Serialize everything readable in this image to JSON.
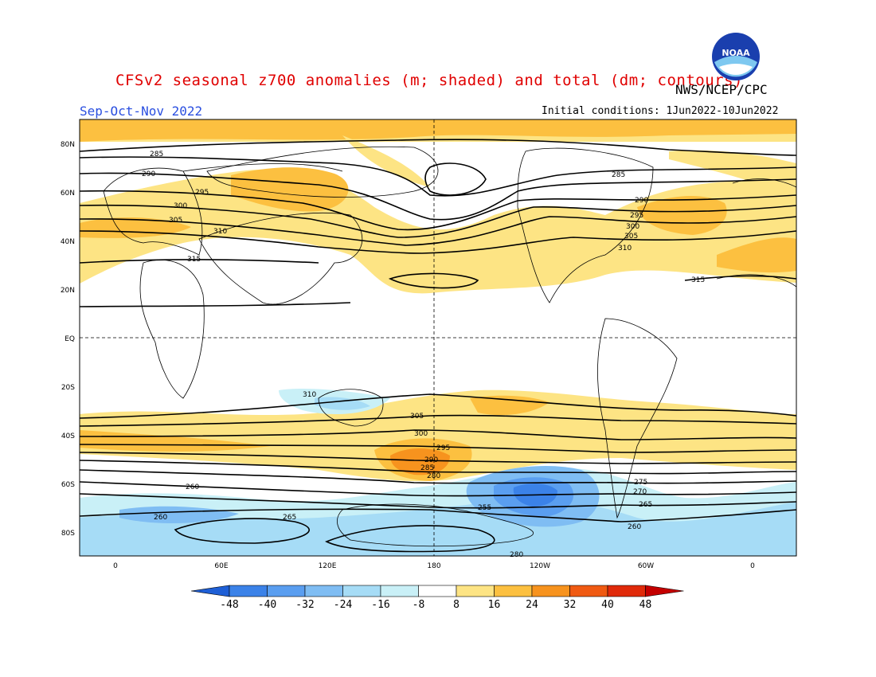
{
  "header": {
    "title": "CFSv2 seasonal z700 anomalies (m; shaded) and total (dm; contours)",
    "agency": "NWS/NCEP/CPC",
    "season": "Sep-Oct-Nov 2022",
    "initial_conditions": "Initial conditions: 1Jun2022-10Jun2022",
    "logo_text": "NOAA"
  },
  "map": {
    "lat_labels": [
      "80N",
      "60N",
      "40N",
      "20N",
      "EQ",
      "20S",
      "40S",
      "60S",
      "80S"
    ],
    "lon_labels": [
      "0",
      "60E",
      "120E",
      "180",
      "120W",
      "60W",
      "0"
    ],
    "contour_labels": [
      "285",
      "290",
      "295",
      "300",
      "305",
      "310",
      "315",
      "285",
      "290",
      "295",
      "300",
      "305",
      "310",
      "315",
      "310",
      "305",
      "300",
      "295",
      "290",
      "285",
      "280",
      "275",
      "270",
      "265",
      "260",
      "255",
      "260",
      "265",
      "260",
      "280"
    ]
  },
  "colorbar": {
    "labels": [
      "-48",
      "-40",
      "-32",
      "-24",
      "-16",
      "-8",
      "8",
      "16",
      "24",
      "32",
      "40",
      "48"
    ],
    "colors": [
      "#1e5fd6",
      "#3b82e8",
      "#5a9ef0",
      "#7fbdf3",
      "#a6dcf6",
      "#c9f0f7",
      "#ffffff",
      "#fde484",
      "#fcc040",
      "#f7931e",
      "#f05a12",
      "#e02a0a",
      "#c40000"
    ]
  },
  "colors": {
    "title": "#e00000",
    "season": "#2a4fe0"
  }
}
